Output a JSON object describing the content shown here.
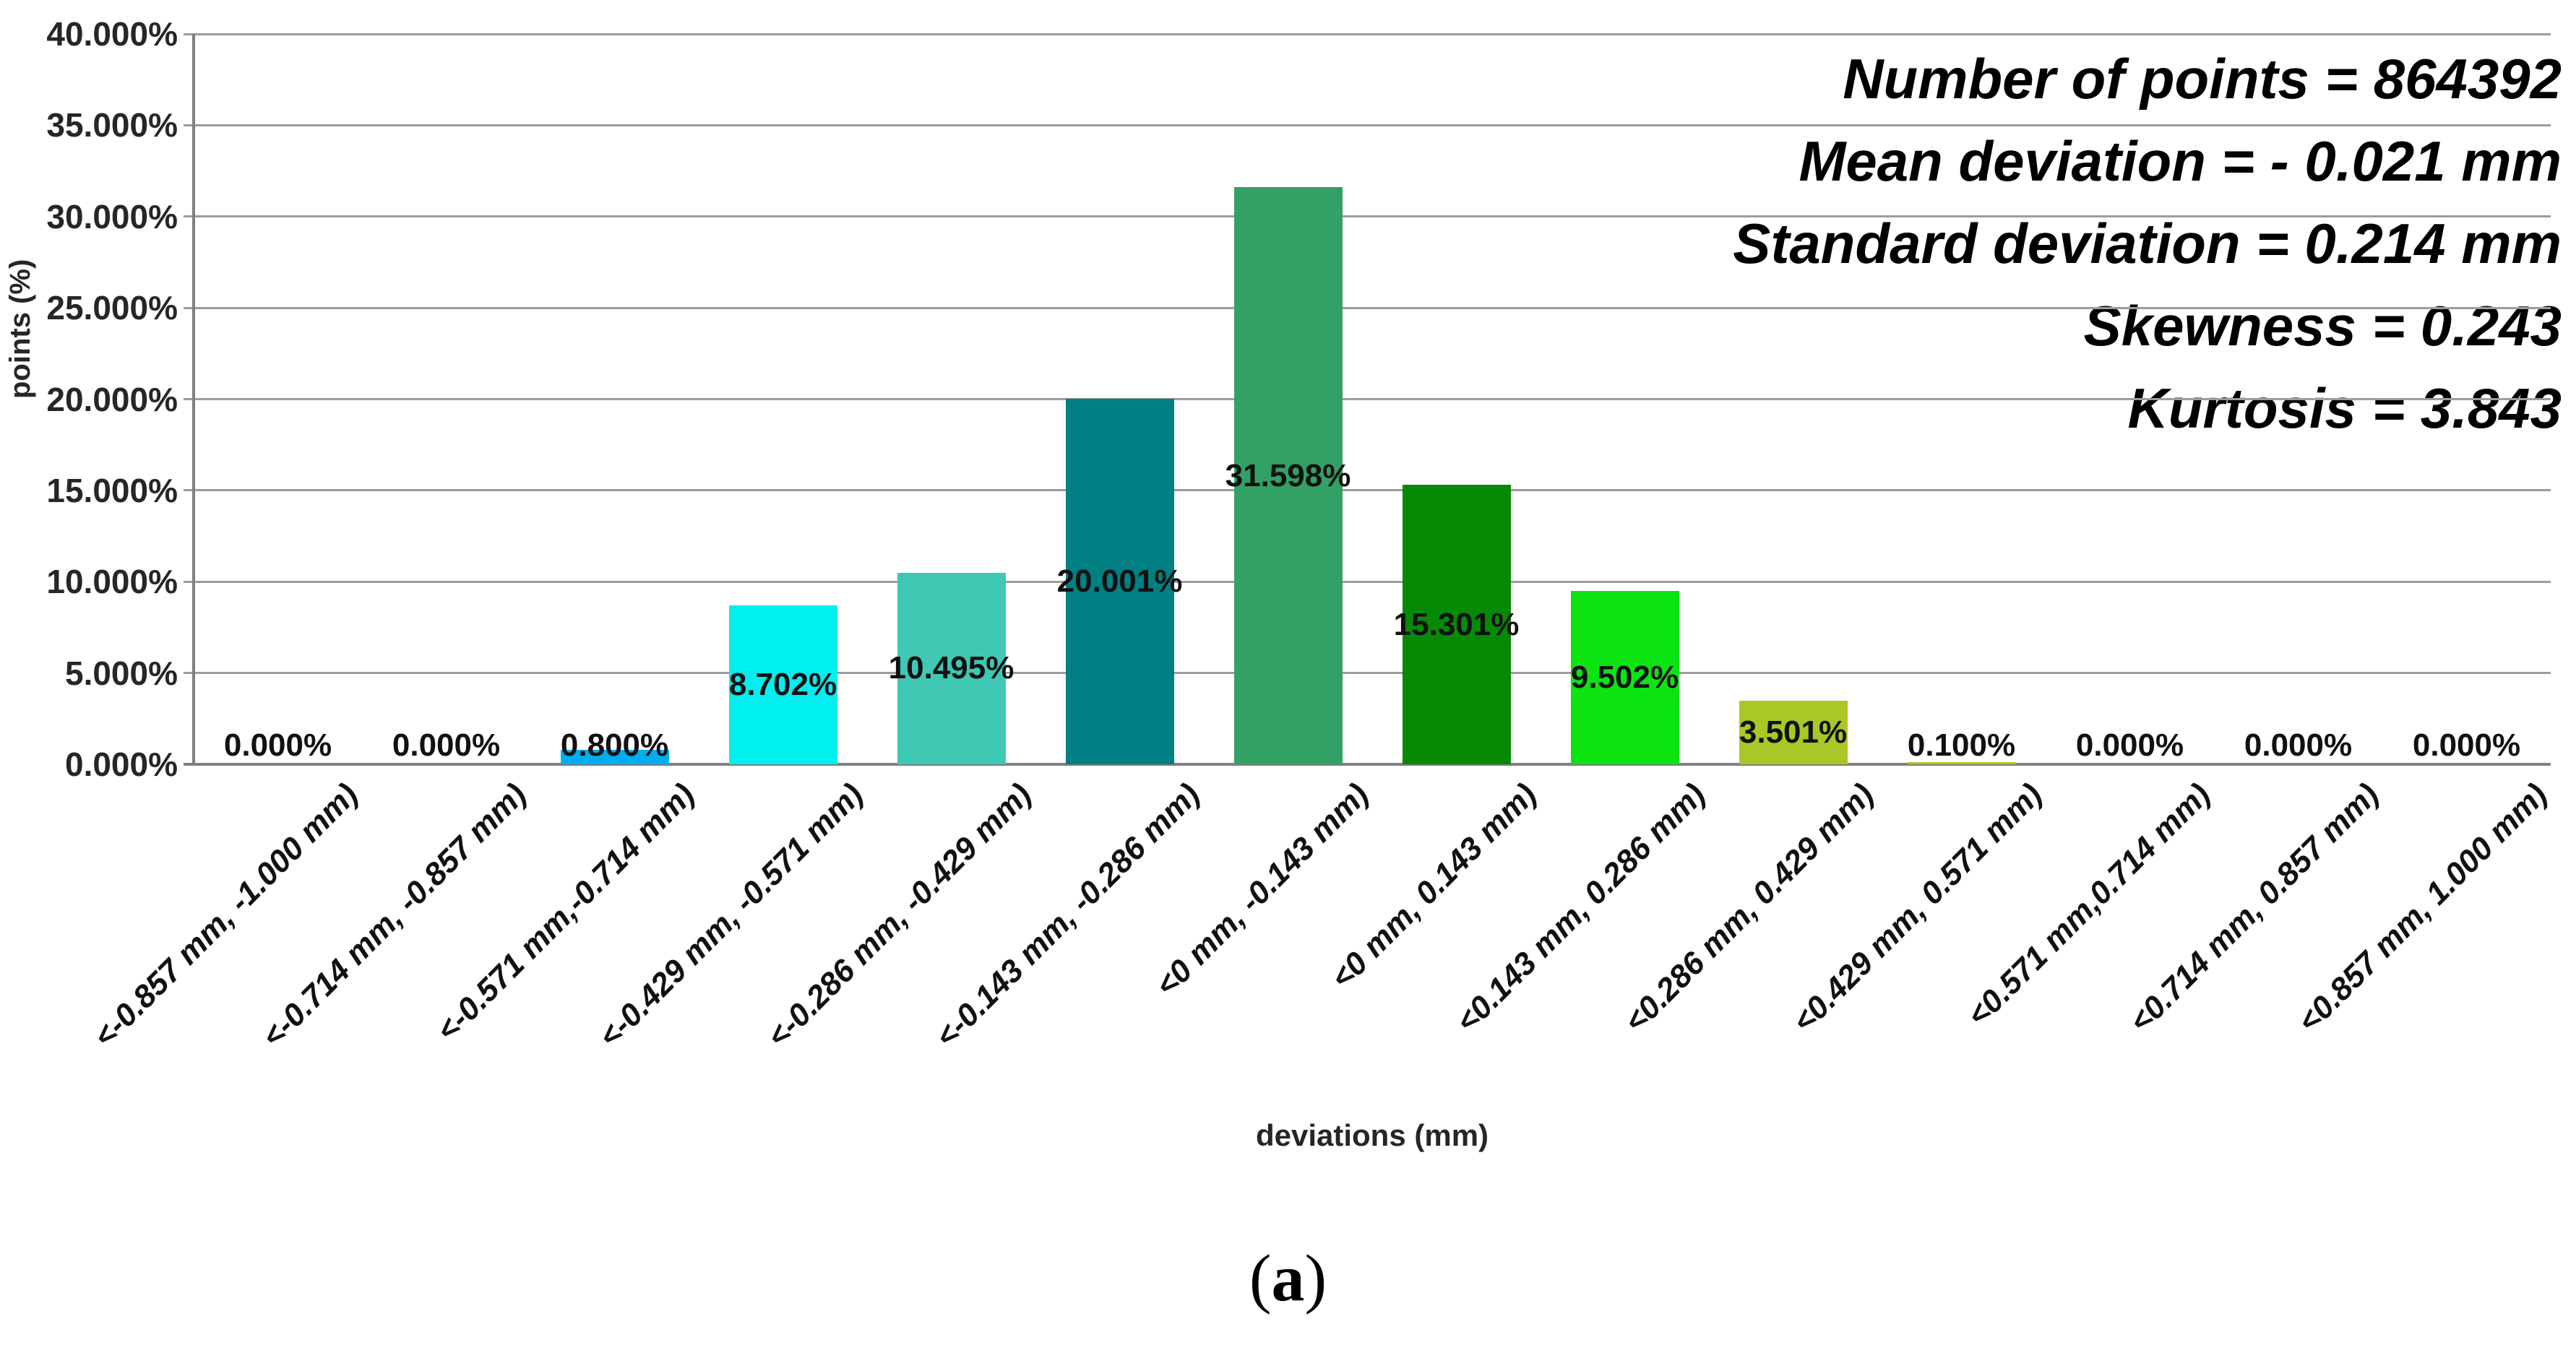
{
  "figure": {
    "background": "#FFFFFF"
  },
  "chart_data": {
    "type": "bar",
    "title": "",
    "xlabel": "deviations (mm)",
    "ylabel": "points (%)",
    "ylim": [
      0,
      40
    ],
    "ytick_step": 5,
    "grid": true,
    "legend": "none",
    "ytick_values": [
      0,
      5,
      10,
      15,
      20,
      25,
      30,
      35,
      40
    ],
    "ytick_labels": [
      "0.000%",
      "5.000%",
      "10.000%",
      "15.000%",
      "20.000%",
      "25.000%",
      "30.000%",
      "35.000%",
      "40.000%"
    ],
    "categories": [
      "<-0.857 mm, -1.000 mm)",
      "<-0.714 mm, -0.857 mm)",
      "<-0.571 mm,-0.714 mm)",
      "<-0.429 mm, -0.571 mm)",
      "<-0.286 mm, -0.429 mm)",
      "<-0.143 mm, -0.286 mm)",
      "<0 mm, -0.143 mm)",
      "<0 mm, 0.143 mm)",
      "<0.143 mm, 0.286 mm)",
      "<0.286 mm, 0.429 mm)",
      "<0.429 mm, 0.571 mm)",
      "<0.571 mm,0.714 mm)",
      "<0.714 mm, 0.857 mm)",
      "<0.857 mm, 1.000 mm)"
    ],
    "values": [
      0.0,
      0.0,
      0.8,
      8.702,
      10.495,
      20.001,
      31.598,
      15.301,
      9.502,
      3.501,
      0.1,
      0.0,
      0.0,
      0.0
    ],
    "value_labels": [
      "0.000%",
      "0.000%",
      "0.800%",
      "8.702%",
      "10.495%",
      "20.001%",
      "31.598%",
      "15.301%",
      "9.502%",
      "3.501%",
      "0.100%",
      "0.000%",
      "0.000%",
      "0.000%"
    ],
    "bar_colors": [
      null,
      null,
      "#00AEEF",
      "#00EFEF",
      "#3FC8B4",
      "#008083",
      "#33A065",
      "#068A06",
      "#0CE412",
      "#A9C827",
      "#AAC827",
      null,
      null,
      null
    ],
    "gridline_color": "#9C9C9C",
    "axis_color": "#7F7F7F",
    "tick_label_color": "#262626",
    "value_label_color": "#111111"
  },
  "stats": {
    "lines": [
      "Number of points = 864392",
      "Mean deviation = - 0.021 mm",
      "Standard deviation = 0.214 mm",
      "Skewness = 0.243",
      "Kurtosis = 3.843"
    ]
  },
  "caption": {
    "open": "(",
    "letter": "a",
    "close": ")"
  }
}
